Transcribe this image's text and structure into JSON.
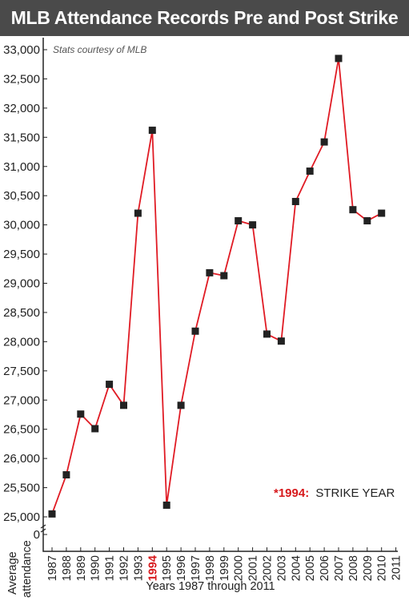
{
  "chart_data": {
    "type": "line",
    "title": "MLB Attendance Records Pre and Post Strike",
    "source_note": "Stats courtesy of MLB",
    "xlabel": "Years 1987 through 2011",
    "ylabel_line1": "Average",
    "ylabel_line2": "attendance",
    "categories": [
      "1987",
      "1988",
      "1989",
      "1990",
      "1991",
      "1992",
      "1993",
      "1994",
      "1995",
      "1996",
      "1997",
      "1998",
      "1999",
      "2000",
      "2001",
      "2002",
      "2003",
      "2004",
      "2005",
      "2006",
      "2007",
      "2008",
      "2009",
      "2010",
      "2011"
    ],
    "values": [
      25050,
      25720,
      26760,
      26510,
      27270,
      26910,
      30200,
      31620,
      25200,
      26910,
      28180,
      29180,
      29130,
      30070,
      30000,
      28130,
      28010,
      30400,
      30920,
      31420,
      32850,
      30260,
      30070,
      30200,
      null
    ],
    "highlight_category": "1994",
    "y_tick_labels": [
      "0",
      "25,000",
      "25,500",
      "26,000",
      "26,500",
      "27,000",
      "27,500",
      "28,000",
      "28,500",
      "29,000",
      "29,500",
      "30,000",
      "30,500",
      "31,000",
      "31,500",
      "32,000",
      "32,500",
      "33,000"
    ],
    "ylim": [
      25000,
      33000
    ],
    "axis_break": true,
    "annotation": {
      "marker": "*1994:",
      "text": "STRIKE YEAR"
    },
    "line_color": "#e01b24",
    "marker_color": "#222222",
    "accent_color": "#d7191c",
    "header_bg": "#4a4a4a",
    "grid": false
  }
}
